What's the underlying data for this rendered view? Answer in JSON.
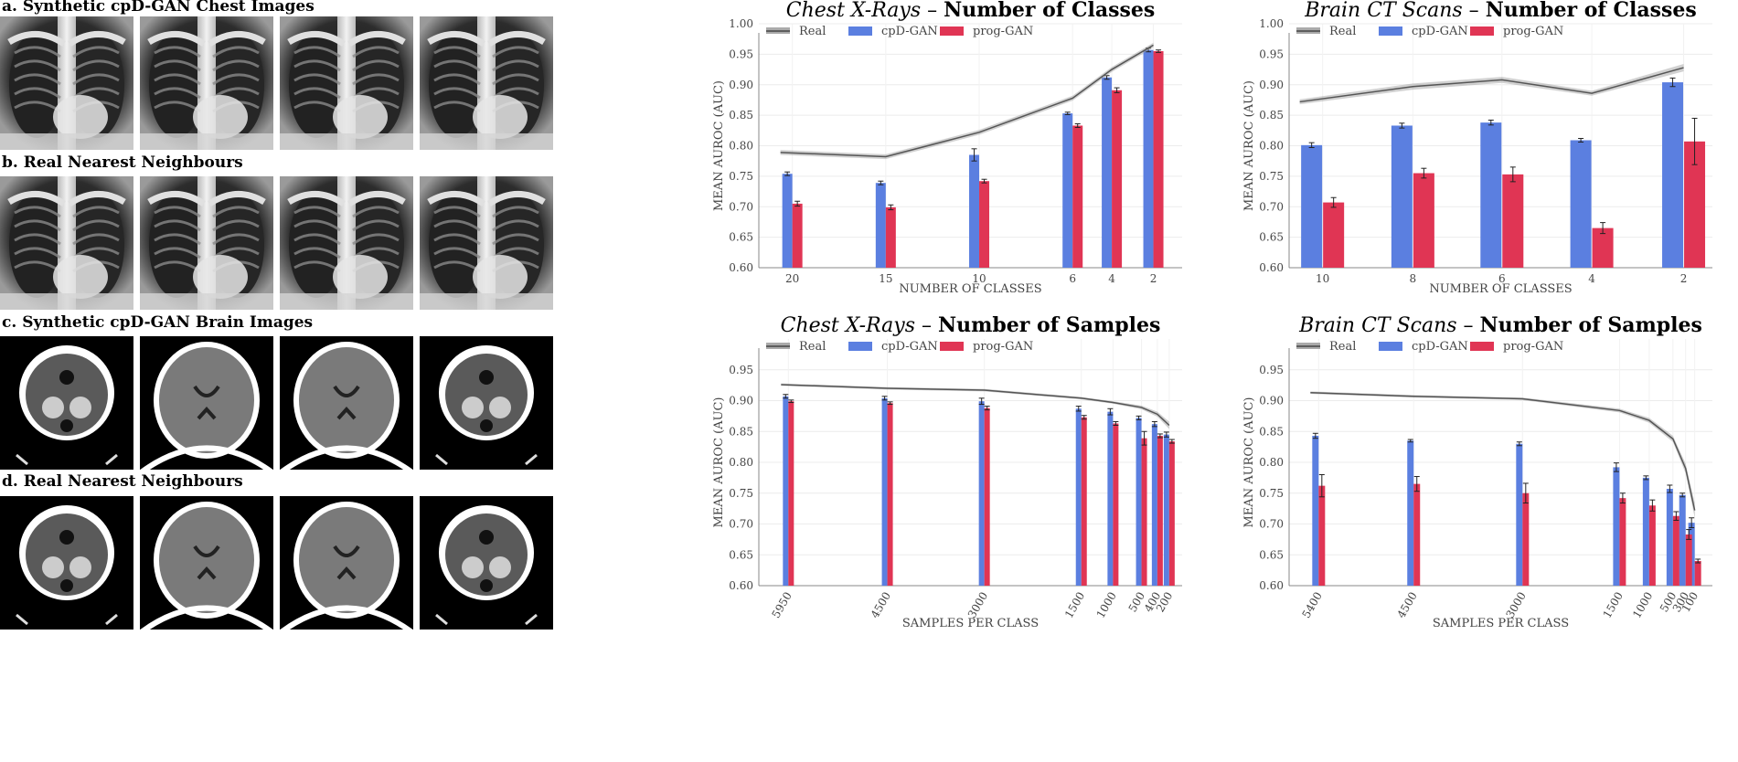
{
  "panels": {
    "a": "a. Synthetic cpD-GAN Chest Images",
    "b": "b. Real Nearest Neighbours",
    "c": "c. Synthetic cpD-GAN Brain Images",
    "d": "d. Real Nearest Neighbours"
  },
  "colors": {
    "real": "#555555",
    "cpdgan": "#5b7fe0",
    "proggan": "#e03554"
  },
  "chart_data": [
    {
      "type": "bar",
      "title_italic": "Chest X-Rays",
      "title_bold": "Number of Classes",
      "xlabel": "NUMBER OF CLASSES",
      "ylabel": "MEAN AUROC (AUC)",
      "legend": [
        "Real",
        "cpD-GAN",
        "prog-GAN"
      ],
      "legend_position": "top-left",
      "grid": true,
      "ylim": [
        0.6,
        1.0
      ],
      "yticks": [
        "0.60",
        "0.65",
        "0.70",
        "0.75",
        "0.80",
        "0.85",
        "0.90",
        "0.95",
        "1.00"
      ],
      "x": [
        20,
        15,
        10,
        6,
        4,
        2
      ],
      "x_labels": [
        "20",
        "15",
        "10",
        "6",
        "4",
        "2"
      ],
      "series": [
        {
          "name": "Real",
          "kind": "line",
          "values": [
            0.789,
            0.782,
            0.822,
            0.878,
            0.925,
            0.965
          ]
        },
        {
          "name": "cpD-GAN",
          "kind": "bar",
          "values": [
            0.754,
            0.739,
            0.785,
            0.853,
            0.912,
            0.957
          ]
        },
        {
          "name": "prog-GAN",
          "kind": "bar",
          "values": [
            0.705,
            0.699,
            0.742,
            0.833,
            0.891,
            0.955
          ]
        }
      ]
    },
    {
      "type": "bar",
      "title_italic": "Brain CT Scans",
      "title_bold": "Number of Classes",
      "xlabel": "NUMBER OF CLASSES",
      "ylabel": "MEAN AUROC (AUC)",
      "legend": [
        "Real",
        "cpD-GAN",
        "prog-GAN"
      ],
      "legend_position": "top-left",
      "grid": true,
      "ylim": [
        0.6,
        1.0
      ],
      "yticks": [
        "0.60",
        "0.65",
        "0.70",
        "0.75",
        "0.80",
        "0.85",
        "0.90",
        "0.95",
        "1.00"
      ],
      "x": [
        10,
        8,
        6,
        4,
        2
      ],
      "x_labels": [
        "10",
        "8",
        "6",
        "4",
        "2"
      ],
      "series": [
        {
          "name": "Real",
          "kind": "line",
          "values": [
            0.872,
            0.897,
            0.908,
            0.886,
            0.928
          ]
        },
        {
          "name": "cpD-GAN",
          "kind": "bar",
          "values": [
            0.801,
            0.833,
            0.838,
            0.809,
            0.904
          ]
        },
        {
          "name": "prog-GAN",
          "kind": "bar",
          "values": [
            0.707,
            0.755,
            0.753,
            0.665,
            0.807
          ]
        }
      ]
    },
    {
      "type": "bar",
      "title_italic": "Chest X-Rays",
      "title_bold": "Number of Samples",
      "xlabel": "SAMPLES PER CLASS",
      "ylabel": "MEAN AUROC (AUC)",
      "legend": [
        "Real",
        "cpD-GAN",
        "prog-GAN"
      ],
      "legend_position": "top-left",
      "grid": true,
      "ylim": [
        0.6,
        1.0
      ],
      "yticks": [
        "0.60",
        "0.65",
        "0.70",
        "0.75",
        "0.80",
        "0.85",
        "0.90",
        "0.95"
      ],
      "x": [
        5950,
        4500,
        3000,
        1500,
        1000,
        500,
        400,
        200
      ],
      "x_labels": [
        "5950",
        "4500",
        "3000",
        "1500",
        "1000",
        "500",
        "400",
        "200"
      ],
      "series": [
        {
          "name": "Real",
          "kind": "line",
          "values": [
            0.926,
            0.92,
            0.917,
            0.904,
            0.897,
            0.889,
            0.878,
            0.86
          ]
        },
        {
          "name": "cpD-GAN",
          "kind": "bar",
          "values": [
            0.907,
            0.904,
            0.899,
            0.887,
            0.882,
            0.872,
            0.862,
            0.845
          ]
        },
        {
          "name": "prog-GAN",
          "kind": "bar",
          "values": [
            0.899,
            0.896,
            0.888,
            0.873,
            0.863,
            0.839,
            0.843,
            0.834
          ]
        }
      ]
    },
    {
      "type": "bar",
      "title_italic": "Brain CT Scans",
      "title_bold": "Number of Samples",
      "xlabel": "SAMPLES PER CLASS",
      "ylabel": "MEAN AUROC (AUC)",
      "legend": [
        "Real",
        "cpD-GAN",
        "prog-GAN"
      ],
      "legend_position": "top-left",
      "grid": true,
      "ylim": [
        0.6,
        1.0
      ],
      "yticks": [
        "0.60",
        "0.65",
        "0.70",
        "0.75",
        "0.80",
        "0.85",
        "0.90",
        "0.95"
      ],
      "x": [
        5400,
        4500,
        3000,
        1500,
        1000,
        500,
        300,
        100
      ],
      "x_labels": [
        "5400",
        "4500",
        "3000",
        "1500",
        "1000",
        "500",
        "300",
        "100"
      ],
      "series": [
        {
          "name": "Real",
          "kind": "line",
          "values": [
            0.913,
            0.907,
            0.903,
            0.884,
            0.868,
            0.838,
            0.79,
            0.722
          ]
        },
        {
          "name": "cpD-GAN",
          "kind": "bar",
          "values": [
            0.843,
            0.835,
            0.83,
            0.792,
            0.775,
            0.757,
            0.747,
            0.702
          ]
        },
        {
          "name": "prog-GAN",
          "kind": "bar",
          "values": [
            0.762,
            0.765,
            0.75,
            0.742,
            0.73,
            0.713,
            0.683,
            0.64
          ]
        }
      ]
    }
  ]
}
